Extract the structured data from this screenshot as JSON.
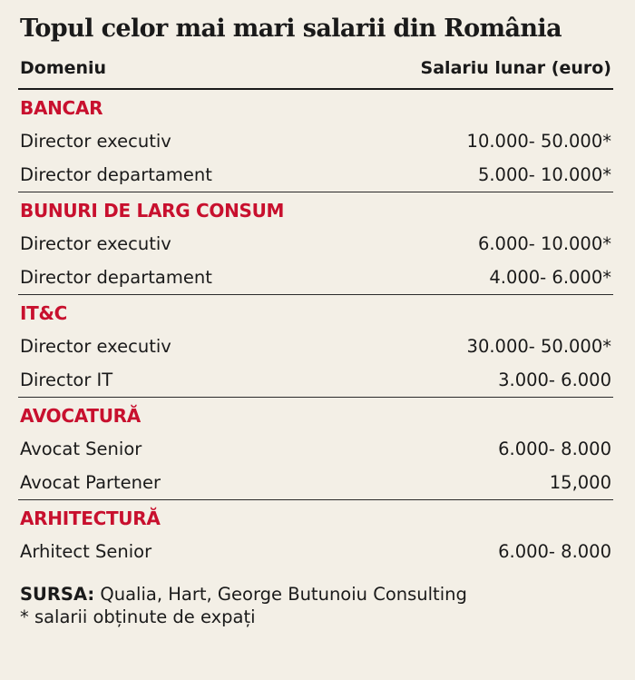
{
  "title": "Topul celor mai mari salarii din România",
  "header": {
    "left": "Domeniu",
    "right": "Salariu lunar (euro)"
  },
  "sections": [
    {
      "name": "BANCAR",
      "rows": [
        {
          "label": "Director executiv",
          "value": "10.000- 50.000*"
        },
        {
          "label": "Director departament",
          "value": "5.000- 10.000*"
        }
      ]
    },
    {
      "name": "BUNURI DE LARG CONSUM",
      "rows": [
        {
          "label": "Director executiv",
          "value": "6.000- 10.000*"
        },
        {
          "label": "Director departament",
          "value": "4.000- 6.000*"
        }
      ]
    },
    {
      "name": "IT&C",
      "rows": [
        {
          "label": "Director executiv",
          "value": "30.000- 50.000*"
        },
        {
          "label": "Director IT",
          "value": "3.000- 6.000"
        }
      ]
    },
    {
      "name": "AVOCATURĂ",
      "rows": [
        {
          "label": "Avocat Senior",
          "value": "6.000- 8.000"
        },
        {
          "label": "Avocat Partener",
          "value": "15,000"
        }
      ]
    },
    {
      "name": "ARHITECTURĂ",
      "rows": [
        {
          "label": "Arhitect Senior",
          "value": "6.000- 8.000"
        }
      ]
    }
  ],
  "footer": {
    "source_label": "SURSA:",
    "source_text": " Qualia, Hart, George Butunoiu Consulting",
    "note": "* salarii obținute de expați"
  },
  "colors": {
    "accent": "#c8102e",
    "background": "#f3efe6",
    "text": "#1a1a1a"
  }
}
